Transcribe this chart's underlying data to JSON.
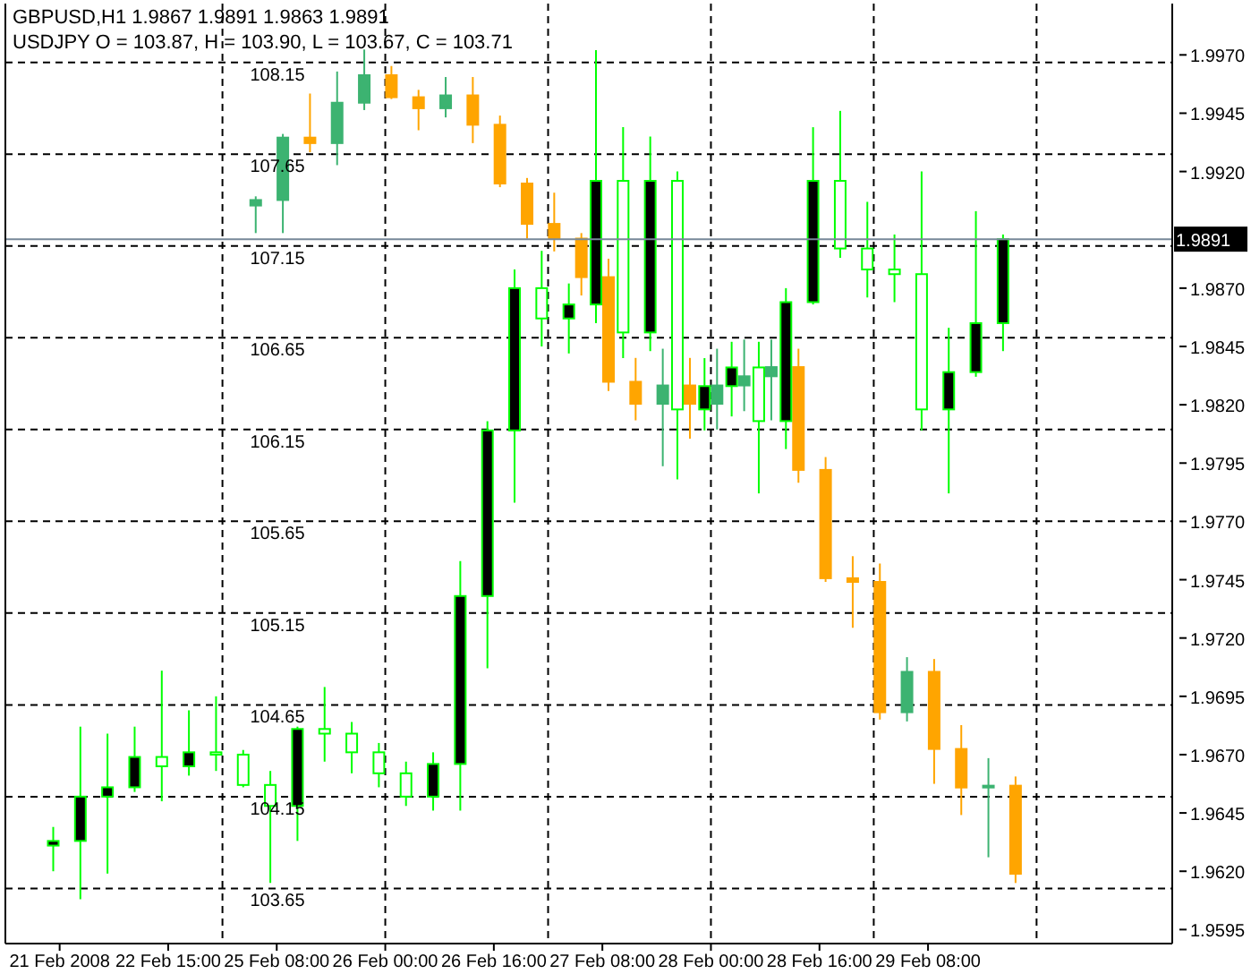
{
  "chart_data": {
    "type": "candlestick",
    "title": "GBPUSD,H1 1.9867 1.9891 1.9863 1.9891",
    "subtitle": "USDJPY O = 103.87, H = 103.90, L = 103.67, C = 103.71",
    "categories": [
      "21 Feb 2008",
      null,
      null,
      null,
      "22 Feb 15:00",
      null,
      null,
      null,
      "25 Feb 08:00",
      null,
      null,
      null,
      "26 Feb 00:00",
      null,
      null,
      null,
      "26 Feb 16:00",
      null,
      null,
      null,
      "27 Feb 08:00",
      null,
      null,
      null,
      "28 Feb 00:00",
      null,
      null,
      null,
      "28 Feb 16:00",
      null,
      null,
      null,
      "29 Feb 08:00",
      null,
      null,
      null,
      null,
      null,
      null,
      null,
      null,
      null
    ],
    "series": [
      {
        "color": "#00ff00",
        "axis": "y2",
        "ohlc": [
          [
            1.9631,
            1.9639,
            1.962,
            1.9633
          ],
          [
            1.9633,
            1.9682,
            1.9608,
            1.9652
          ],
          [
            1.9652,
            1.9679,
            1.9619,
            1.9656
          ],
          [
            1.9656,
            1.9682,
            1.9654,
            1.9669
          ],
          [
            1.9669,
            1.9706,
            1.965,
            1.9665
          ],
          [
            1.9665,
            1.9689,
            1.9661,
            1.9671
          ],
          [
            1.9671,
            1.9695,
            1.9663,
            1.967
          ],
          [
            1.967,
            1.9672,
            1.9656,
            1.9657
          ],
          [
            1.9657,
            1.9663,
            1.9615,
            1.9648
          ],
          [
            1.9648,
            1.9682,
            1.9633,
            1.9681
          ],
          [
            1.9681,
            1.9699,
            1.9667,
            1.9679
          ],
          [
            1.9679,
            1.9684,
            1.9662,
            1.9671
          ],
          [
            1.9671,
            1.9675,
            1.9656,
            1.9662
          ],
          [
            1.9662,
            1.9667,
            1.9648,
            1.9652
          ],
          [
            1.9652,
            1.9671,
            1.9646,
            1.9666
          ],
          [
            1.9666,
            1.9753,
            1.9646,
            1.9738
          ],
          [
            1.9738,
            1.9813,
            1.9707,
            1.9809
          ],
          [
            1.9809,
            1.9878,
            1.9778,
            1.987
          ],
          [
            1.987,
            1.9886,
            1.9845,
            1.9857
          ],
          [
            1.9857,
            1.9872,
            1.9842,
            1.9863
          ],
          [
            1.9863,
            1.9972,
            1.9855,
            1.9916
          ],
          [
            1.9916,
            1.9939,
            1.984,
            1.9851
          ],
          [
            1.9851,
            1.9935,
            1.9843,
            1.9916
          ],
          [
            1.9916,
            1.992,
            1.9788,
            1.9818
          ],
          [
            1.9818,
            1.984,
            1.9809,
            1.9828
          ],
          [
            1.9828,
            1.9847,
            1.9815,
            1.9836
          ],
          [
            1.9836,
            1.9847,
            1.9782,
            1.9813
          ],
          [
            1.9813,
            1.987,
            1.9801,
            1.9864
          ],
          [
            1.9864,
            1.9939,
            1.9863,
            1.9916
          ],
          [
            1.9916,
            1.9946,
            1.9883,
            1.9887
          ],
          [
            1.9887,
            1.9907,
            1.9866,
            1.9878
          ],
          [
            1.9878,
            1.9893,
            1.9864,
            1.9876
          ],
          [
            1.9876,
            1.992,
            1.9809,
            1.9818
          ],
          [
            1.9818,
            1.9853,
            1.9782,
            1.9834
          ],
          [
            1.9834,
            1.9903,
            1.9832,
            1.9855
          ],
          [
            1.9855,
            1.9893,
            1.9843,
            1.9891
          ],
          null,
          null,
          null,
          null,
          null,
          null
        ]
      },
      {
        "colors": [
          null,
          null,
          null,
          null,
          null,
          null,
          null,
          "#3cb371",
          "#3cb371",
          "#ffa500",
          "#3cb371",
          "#3cb371",
          "#ffa500",
          "#ffa500",
          "#3cb371",
          "#ffa500",
          "#ffa500",
          "#ffa500",
          "#ffa500",
          "#ffa500",
          "#ffa500",
          "#ffa500",
          "#3cb371",
          "#ffa500",
          "#3cb371",
          "#3cb371",
          "#3cb371",
          "#ffa500",
          "#ffa500",
          "#ffa500",
          "#ffa500",
          "#3cb371",
          "#ffa500",
          "#ffa500",
          "#3cb371",
          "#ffa500",
          null,
          null,
          null,
          null,
          null,
          null
        ],
        "ohlc": [
          null,
          null,
          null,
          null,
          null,
          null,
          null,
          [
            107.37,
            107.42,
            107.22,
            107.4
          ],
          [
            107.4,
            107.76,
            107.22,
            107.74
          ],
          [
            107.74,
            107.98,
            107.66,
            107.71
          ],
          [
            107.71,
            108.1,
            107.59,
            107.93
          ],
          [
            107.93,
            108.22,
            107.89,
            108.08
          ],
          [
            108.08,
            108.13,
            107.95,
            107.96
          ],
          [
            107.96,
            108.0,
            107.78,
            107.9
          ],
          [
            107.9,
            108.07,
            107.85,
            107.97
          ],
          [
            107.97,
            108.07,
            107.71,
            107.81
          ],
          [
            107.81,
            107.86,
            107.47,
            107.49
          ],
          [
            107.49,
            107.52,
            107.19,
            107.27
          ],
          [
            107.27,
            107.44,
            107.12,
            107.19
          ],
          [
            107.19,
            107.22,
            106.88,
            106.98
          ],
          [
            106.98,
            107.08,
            106.36,
            106.41
          ],
          [
            106.41,
            106.54,
            106.2,
            106.29
          ],
          [
            106.29,
            106.59,
            105.95,
            106.39
          ],
          [
            106.39,
            106.54,
            106.1,
            106.29
          ],
          [
            106.29,
            106.59,
            106.15,
            106.39
          ],
          [
            106.39,
            106.64,
            106.25,
            106.44
          ],
          [
            106.44,
            106.64,
            106.2,
            106.49
          ],
          [
            106.49,
            106.59,
            105.86,
            105.93
          ],
          [
            105.93,
            106.0,
            105.32,
            105.34
          ],
          [
            105.34,
            105.46,
            105.07,
            105.32
          ],
          [
            105.32,
            105.42,
            104.57,
            104.61
          ],
          [
            104.61,
            104.91,
            104.56,
            104.83
          ],
          [
            104.83,
            104.9,
            104.22,
            104.41
          ],
          [
            104.41,
            104.54,
            104.05,
            104.2
          ],
          [
            104.2,
            104.36,
            103.82,
            104.21
          ],
          [
            104.21,
            104.26,
            103.68,
            103.73
          ],
          null,
          null,
          null,
          null,
          null,
          null
        ]
      }
    ],
    "ylim": [
      103.35,
      108.47
    ],
    "yticks": [
      103.65,
      104.15,
      104.65,
      105.15,
      105.65,
      106.15,
      106.65,
      107.15,
      107.65,
      108.15
    ],
    "y2lim": [
      1.9589,
      1.9992
    ],
    "y2ticks": [
      1.9595,
      {
        "value": 1.962,
        "label": "1.9620"
      },
      1.9645,
      {
        "value": 1.967,
        "label": "1.9670"
      },
      1.9695,
      {
        "value": 1.972,
        "label": "1.9720"
      },
      1.9745,
      {
        "value": 1.977,
        "label": "1.9770"
      },
      1.9795,
      {
        "value": 1.982,
        "label": "1.9820"
      },
      1.9845,
      {
        "value": 1.987,
        "label": "1.9870"
      },
      {
        "value": 1.9895,
        "label": null
      },
      {
        "value": 1.992,
        "label": "1.9920"
      },
      1.9945,
      {
        "value": 1.997,
        "label": "1.9970"
      }
    ],
    "ref_lines": [
      {
        "axis": "y2",
        "value": 1.9891,
        "label": "1.9891",
        "color": "#778899"
      }
    ],
    "grid": true,
    "legend": false
  }
}
